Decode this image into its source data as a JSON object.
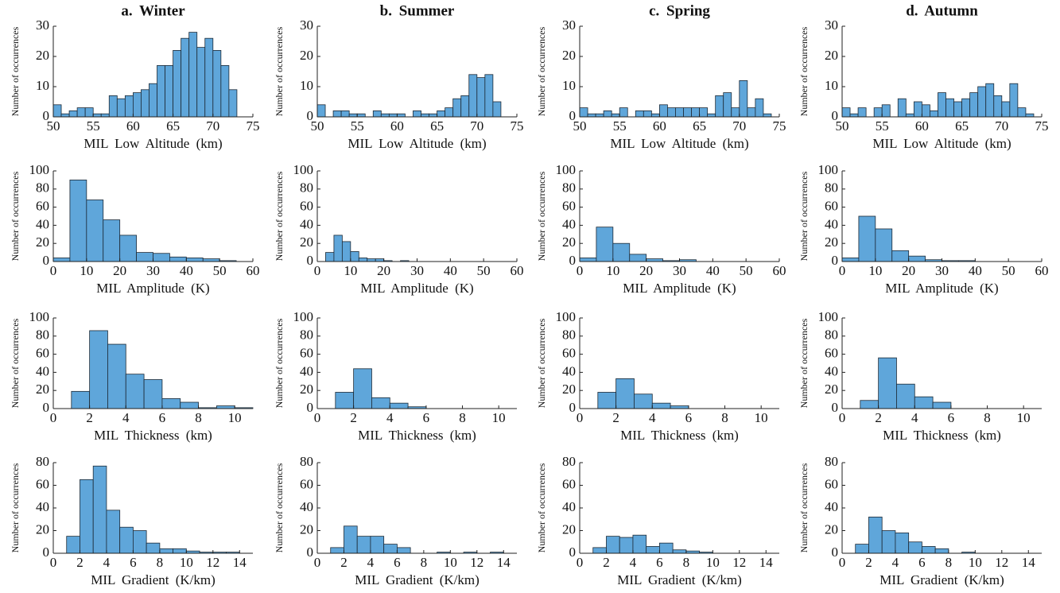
{
  "chart_data": [
    {
      "type": "histogram",
      "title": "a. Winter",
      "xlabel": "MIL Low Altitude (km)",
      "ylabel": "Number of occurrences",
      "color": "#5fa6da",
      "bins": [
        50,
        51,
        52,
        53,
        54,
        55,
        56,
        57,
        58,
        59,
        60,
        61,
        62,
        63,
        64,
        65,
        66,
        67,
        68,
        69,
        70,
        71,
        72,
        73
      ],
      "counts": [
        4,
        1,
        2,
        3,
        3,
        1,
        1,
        7,
        6,
        7,
        8,
        9,
        11,
        17,
        17,
        22,
        26,
        28,
        23,
        26,
        22,
        17,
        9
      ],
      "xlim": [
        50,
        75
      ],
      "xticks": [
        50,
        55,
        60,
        65,
        70,
        75
      ],
      "ylim": [
        0,
        30
      ],
      "yticks": [
        0,
        10,
        20,
        30
      ]
    },
    {
      "type": "histogram",
      "title": "b. Summer",
      "xlabel": "MIL Low Altitude (km)",
      "ylabel": "Number of occurrences",
      "color": "#5fa6da",
      "bins": [
        50,
        51,
        52,
        53,
        54,
        55,
        56,
        57,
        58,
        59,
        60,
        61,
        62,
        63,
        64,
        65,
        66,
        67,
        68,
        69,
        70,
        71,
        72,
        73
      ],
      "counts": [
        4,
        0,
        2,
        2,
        1,
        1,
        0,
        2,
        1,
        1,
        1,
        0,
        2,
        1,
        1,
        2,
        3,
        6,
        7,
        14,
        13,
        14,
        5
      ],
      "xlim": [
        50,
        75
      ],
      "xticks": [
        50,
        55,
        60,
        65,
        70,
        75
      ],
      "ylim": [
        0,
        30
      ],
      "yticks": [
        0,
        10,
        20,
        30
      ]
    },
    {
      "type": "histogram",
      "title": "c. Spring",
      "xlabel": "MIL Low Altitude (km)",
      "ylabel": "Number of occurrences",
      "color": "#5fa6da",
      "bins": [
        50,
        51,
        52,
        53,
        54,
        55,
        56,
        57,
        58,
        59,
        60,
        61,
        62,
        63,
        64,
        65,
        66,
        67,
        68,
        69,
        70,
        71,
        72,
        73,
        74
      ],
      "counts": [
        3,
        1,
        1,
        2,
        1,
        3,
        0,
        2,
        2,
        1,
        4,
        3,
        3,
        3,
        3,
        3,
        1,
        7,
        8,
        3,
        12,
        3,
        6,
        1
      ],
      "xlim": [
        50,
        75
      ],
      "xticks": [
        50,
        55,
        60,
        65,
        70,
        75
      ],
      "ylim": [
        0,
        30
      ],
      "yticks": [
        0,
        10,
        20,
        30
      ]
    },
    {
      "type": "histogram",
      "title": "d. Autumn",
      "xlabel": "MIL Low Altitude (km)",
      "ylabel": "Number of occurrences",
      "color": "#5fa6da",
      "bins": [
        50,
        51,
        52,
        53,
        54,
        55,
        56,
        57,
        58,
        59,
        60,
        61,
        62,
        63,
        64,
        65,
        66,
        67,
        68,
        69,
        70,
        71,
        72,
        73,
        74
      ],
      "counts": [
        3,
        1,
        3,
        0,
        3,
        4,
        0,
        6,
        1,
        5,
        4,
        2,
        8,
        6,
        5,
        6,
        8,
        10,
        11,
        7,
        5,
        11,
        3,
        1
      ],
      "xlim": [
        50,
        75
      ],
      "xticks": [
        50,
        55,
        60,
        65,
        70,
        75
      ],
      "ylim": [
        0,
        30
      ],
      "yticks": [
        0,
        10,
        20,
        30
      ]
    },
    {
      "type": "histogram",
      "xlabel": "MIL Amplitude (K)",
      "ylabel": "Number of occurrences",
      "color": "#5fa6da",
      "bins": [
        0,
        5,
        10,
        15,
        20,
        25,
        30,
        35,
        40,
        45,
        50,
        55
      ],
      "counts": [
        4,
        90,
        68,
        46,
        29,
        10,
        9,
        5,
        4,
        3,
        1
      ],
      "xlim": [
        0,
        60
      ],
      "xticks": [
        0,
        10,
        20,
        30,
        40,
        50,
        60
      ],
      "ylim": [
        0,
        100
      ],
      "yticks": [
        0,
        20,
        40,
        60,
        80,
        100
      ]
    },
    {
      "type": "histogram",
      "xlabel": "MIL Amplitude (K)",
      "ylabel": "Number of occurrences",
      "color": "#5fa6da",
      "bins": [
        2.5,
        5,
        7.5,
        10,
        12.5,
        15,
        17.5,
        20,
        22.5,
        25,
        27.5
      ],
      "counts": [
        10,
        29,
        22,
        11,
        4,
        3,
        3,
        1,
        0,
        1
      ],
      "xlim": [
        0,
        60
      ],
      "xticks": [
        0,
        10,
        20,
        30,
        40,
        50,
        60
      ],
      "ylim": [
        0,
        100
      ],
      "yticks": [
        0,
        20,
        40,
        60,
        80,
        100
      ]
    },
    {
      "type": "histogram",
      "xlabel": "MIL Amplitude (K)",
      "ylabel": "Number of occurrences",
      "color": "#5fa6da",
      "bins": [
        0,
        5,
        10,
        15,
        20,
        25,
        30,
        35
      ],
      "counts": [
        4,
        38,
        20,
        8,
        3,
        1,
        2
      ],
      "xlim": [
        0,
        60
      ],
      "xticks": [
        0,
        10,
        20,
        30,
        40,
        50,
        60
      ],
      "ylim": [
        0,
        100
      ],
      "yticks": [
        0,
        20,
        40,
        60,
        80,
        100
      ]
    },
    {
      "type": "histogram",
      "xlabel": "MIL Amplitude (K)",
      "ylabel": "Number of occurrences",
      "color": "#5fa6da",
      "bins": [
        0,
        5,
        10,
        15,
        20,
        25,
        30,
        35,
        40
      ],
      "counts": [
        4,
        50,
        36,
        12,
        6,
        2,
        1,
        1
      ],
      "xlim": [
        0,
        60
      ],
      "xticks": [
        0,
        10,
        20,
        30,
        40,
        50,
        60
      ],
      "ylim": [
        0,
        100
      ],
      "yticks": [
        0,
        20,
        40,
        60,
        80,
        100
      ]
    },
    {
      "type": "histogram",
      "xlabel": "MIL Thickness (km)",
      "ylabel": "Number of occurrences",
      "color": "#5fa6da",
      "bins": [
        1,
        2,
        3,
        4,
        5,
        6,
        7,
        8,
        9,
        10,
        11
      ],
      "counts": [
        19,
        86,
        71,
        38,
        32,
        11,
        7,
        1,
        3,
        1
      ],
      "xlim": [
        0,
        11
      ],
      "xticks": [
        0,
        2,
        4,
        6,
        8,
        10
      ],
      "ylim": [
        0,
        100
      ],
      "yticks": [
        0,
        20,
        40,
        60,
        80,
        100
      ]
    },
    {
      "type": "histogram",
      "xlabel": "MIL Thickness (km)",
      "ylabel": "Number of occurrences",
      "color": "#5fa6da",
      "bins": [
        1,
        2,
        3,
        4,
        5,
        6
      ],
      "counts": [
        18,
        44,
        12,
        6,
        2
      ],
      "xlim": [
        0,
        11
      ],
      "xticks": [
        0,
        2,
        4,
        6,
        8,
        10
      ],
      "ylim": [
        0,
        100
      ],
      "yticks": [
        0,
        20,
        40,
        60,
        80,
        100
      ]
    },
    {
      "type": "histogram",
      "xlabel": "MIL Thickness (km)",
      "ylabel": "Number of occurrences",
      "color": "#5fa6da",
      "bins": [
        1,
        2,
        3,
        4,
        5,
        6
      ],
      "counts": [
        18,
        33,
        16,
        6,
        3
      ],
      "xlim": [
        0,
        11
      ],
      "xticks": [
        0,
        2,
        4,
        6,
        8,
        10
      ],
      "ylim": [
        0,
        100
      ],
      "yticks": [
        0,
        20,
        40,
        60,
        80,
        100
      ]
    },
    {
      "type": "histogram",
      "xlabel": "MIL Thickness (km)",
      "ylabel": "Number of occurrences",
      "color": "#5fa6da",
      "bins": [
        1,
        2,
        3,
        4,
        5,
        6
      ],
      "counts": [
        9,
        56,
        27,
        13,
        7
      ],
      "xlim": [
        0,
        11
      ],
      "xticks": [
        0,
        2,
        4,
        6,
        8,
        10
      ],
      "ylim": [
        0,
        100
      ],
      "yticks": [
        0,
        20,
        40,
        60,
        80,
        100
      ]
    },
    {
      "type": "histogram",
      "xlabel": "MIL Gradient (K/km)",
      "ylabel": "Number of occurrences",
      "color": "#5fa6da",
      "bins": [
        1,
        2,
        3,
        4,
        5,
        6,
        7,
        8,
        9,
        10,
        11,
        12,
        13,
        14
      ],
      "counts": [
        15,
        65,
        77,
        38,
        23,
        20,
        9,
        4,
        4,
        2,
        1,
        1,
        1
      ],
      "xlim": [
        0,
        15
      ],
      "xticks": [
        0,
        2,
        4,
        6,
        8,
        10,
        12,
        14
      ],
      "ylim": [
        0,
        80
      ],
      "yticks": [
        0,
        20,
        40,
        60,
        80
      ]
    },
    {
      "type": "histogram",
      "xlabel": "MIL Gradient (K/km)",
      "ylabel": "Number of occurrences",
      "color": "#5fa6da",
      "bins": [
        1,
        2,
        3,
        4,
        5,
        6,
        7,
        8,
        9,
        10,
        11,
        12,
        13,
        14
      ],
      "counts": [
        5,
        24,
        15,
        15,
        8,
        5,
        0,
        0,
        1,
        0,
        1,
        0,
        1
      ],
      "xlim": [
        0,
        15
      ],
      "xticks": [
        0,
        2,
        4,
        6,
        8,
        10,
        12,
        14
      ],
      "ylim": [
        0,
        80
      ],
      "yticks": [
        0,
        20,
        40,
        60,
        80
      ]
    },
    {
      "type": "histogram",
      "xlabel": "MIL Gradient (K/km)",
      "ylabel": "Number of occurrences",
      "color": "#5fa6da",
      "bins": [
        1,
        2,
        3,
        4,
        5,
        6,
        7,
        8,
        9,
        10
      ],
      "counts": [
        5,
        15,
        14,
        16,
        6,
        9,
        3,
        2,
        1
      ],
      "xlim": [
        0,
        15
      ],
      "xticks": [
        0,
        2,
        4,
        6,
        8,
        10,
        12,
        14
      ],
      "ylim": [
        0,
        80
      ],
      "yticks": [
        0,
        20,
        40,
        60,
        80
      ]
    },
    {
      "type": "histogram",
      "xlabel": "MIL Gradient (K/km)",
      "ylabel": "Number of occurrences",
      "color": "#5fa6da",
      "bins": [
        1,
        2,
        3,
        4,
        5,
        6,
        7,
        8,
        9,
        10
      ],
      "counts": [
        8,
        32,
        20,
        18,
        10,
        6,
        4,
        0,
        1
      ],
      "xlim": [
        0,
        15
      ],
      "xticks": [
        0,
        2,
        4,
        6,
        8,
        10,
        12,
        14
      ],
      "ylim": [
        0,
        80
      ],
      "yticks": [
        0,
        20,
        40,
        60,
        80
      ]
    }
  ]
}
